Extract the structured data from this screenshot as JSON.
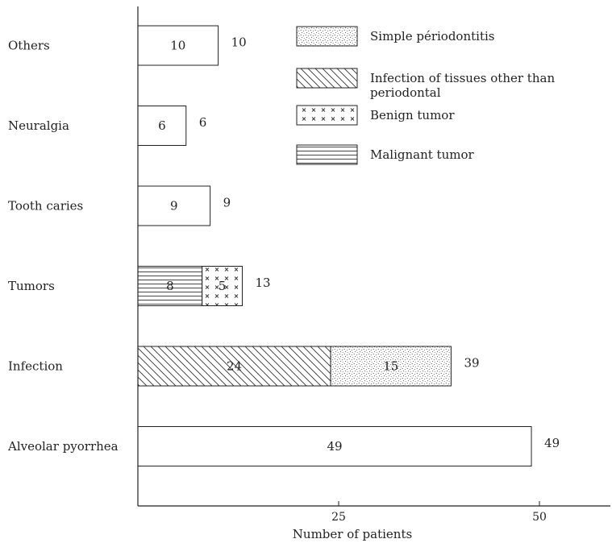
{
  "chart_data": {
    "type": "bar",
    "orientation": "horizontal",
    "stacked": true,
    "categories": [
      "Others",
      "Neuralgia",
      "Tooth caries",
      "Tumors",
      "Infection",
      "Alveolar pyorrhea"
    ],
    "segments": [
      [
        {
          "value": 10,
          "pattern": "plain"
        }
      ],
      [
        {
          "value": 6,
          "pattern": "plain"
        }
      ],
      [
        {
          "value": 9,
          "pattern": "plain"
        }
      ],
      [
        {
          "value": 8,
          "pattern": "horizontal-lines"
        },
        {
          "value": 5,
          "pattern": "crosses"
        }
      ],
      [
        {
          "value": 24,
          "pattern": "diagonal-hatch"
        },
        {
          "value": 15,
          "pattern": "dots"
        }
      ],
      [
        {
          "value": 49,
          "pattern": "plain"
        }
      ]
    ],
    "totals": [
      10,
      6,
      9,
      13,
      39,
      49
    ],
    "xlabel": "Number of patients",
    "xticks": [
      25,
      50
    ],
    "xlim": [
      0,
      59
    ],
    "grid": false,
    "legend_position": "top-right",
    "legend": [
      {
        "label": "Simple périodontitis",
        "pattern": "dots"
      },
      {
        "label_lines": [
          "Infection of tissues other than",
          "periodontal"
        ],
        "pattern": "diagonal-hatch"
      },
      {
        "label": "Benign tumor",
        "pattern": "crosses"
      },
      {
        "label": "Malignant tumor",
        "pattern": "horizontal-lines"
      }
    ]
  }
}
